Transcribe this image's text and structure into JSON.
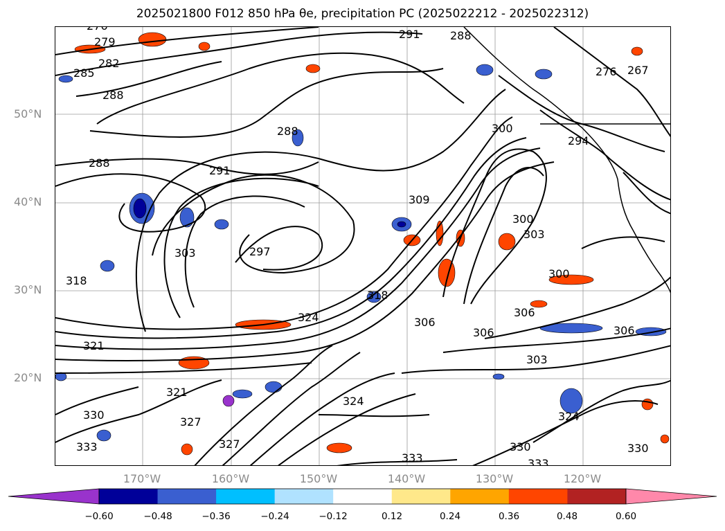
{
  "title": "2025021800 F012 850 hPa θe, precipitation PC (2025022212 - 2025022312)",
  "lat_labels": [
    "50°N",
    "40°N",
    "30°N",
    "20°N"
  ],
  "lon_labels": [
    "170°W",
    "160°W",
    "150°W",
    "140°W",
    "130°W",
    "120°W"
  ],
  "colorbar": {
    "ticks": [
      "−0.60",
      "−0.48",
      "−0.36",
      "−0.24",
      "−0.12",
      "0.12",
      "0.24",
      "0.36",
      "0.48",
      "0.60"
    ],
    "colors": [
      "#9933cc",
      "#000099",
      "#3a5fd0",
      "#00bfff",
      "#b0e2ff",
      "#ffffff",
      "#ffe88a",
      "#ffa500",
      "#ff4500",
      "#b22222",
      "#ff88aa"
    ]
  },
  "contour_labels": [
    {
      "text": "276"
    },
    {
      "text": "279"
    },
    {
      "text": "282"
    },
    {
      "text": "285"
    },
    {
      "text": "288"
    },
    {
      "text": "288"
    },
    {
      "text": "288"
    },
    {
      "text": "291"
    },
    {
      "text": "291"
    },
    {
      "text": "288"
    },
    {
      "text": "297"
    },
    {
      "text": "303"
    },
    {
      "text": "318"
    },
    {
      "text": "324"
    },
    {
      "text": "321"
    },
    {
      "text": "309"
    },
    {
      "text": "300"
    },
    {
      "text": "300"
    },
    {
      "text": "303"
    },
    {
      "text": "300"
    },
    {
      "text": "306"
    },
    {
      "text": "306"
    },
    {
      "text": "306"
    },
    {
      "text": "306"
    },
    {
      "text": "303"
    },
    {
      "text": "324"
    },
    {
      "text": "330"
    },
    {
      "text": "333"
    },
    {
      "text": "333"
    },
    {
      "text": "330"
    },
    {
      "text": "333"
    },
    {
      "text": "276"
    },
    {
      "text": "267"
    },
    {
      "text": "294"
    },
    {
      "text": "330"
    },
    {
      "text": "327"
    },
    {
      "text": "318"
    },
    {
      "text": "324"
    },
    {
      "text": "321"
    },
    {
      "text": "327"
    }
  ]
}
